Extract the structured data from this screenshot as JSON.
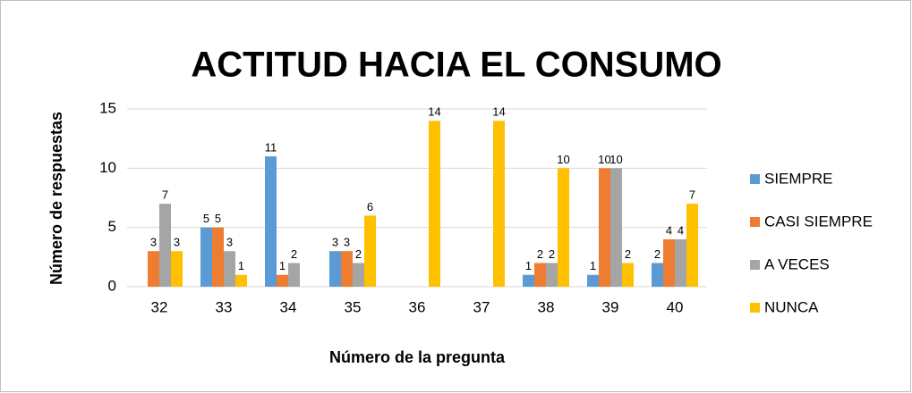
{
  "chart_data": {
    "type": "bar",
    "title": "ACTITUD HACIA EL CONSUMO",
    "x_label": "Número de la pregunta",
    "y_label": "Número de respuestas",
    "categories": [
      "32",
      "33",
      "34",
      "35",
      "36",
      "37",
      "38",
      "39",
      "40"
    ],
    "series": [
      {
        "name": "SIEMPRE",
        "color": "#5b9bd5",
        "values": [
          null,
          5,
          11,
          3,
          null,
          null,
          1,
          1,
          2
        ]
      },
      {
        "name": "CASI SIEMPRE",
        "color": "#ed7d31",
        "values": [
          3,
          5,
          1,
          3,
          null,
          null,
          2,
          10,
          4
        ]
      },
      {
        "name": "A VECES",
        "color": "#a5a5a5",
        "values": [
          7,
          3,
          2,
          2,
          null,
          null,
          2,
          10,
          4
        ]
      },
      {
        "name": "NUNCA",
        "color": "#ffc000",
        "values": [
          3,
          1,
          null,
          6,
          14,
          14,
          10,
          2,
          7
        ]
      }
    ],
    "ylim": [
      0,
      15
    ],
    "yticks": [
      0,
      5,
      10,
      15
    ],
    "grid": true,
    "legend": "right"
  }
}
